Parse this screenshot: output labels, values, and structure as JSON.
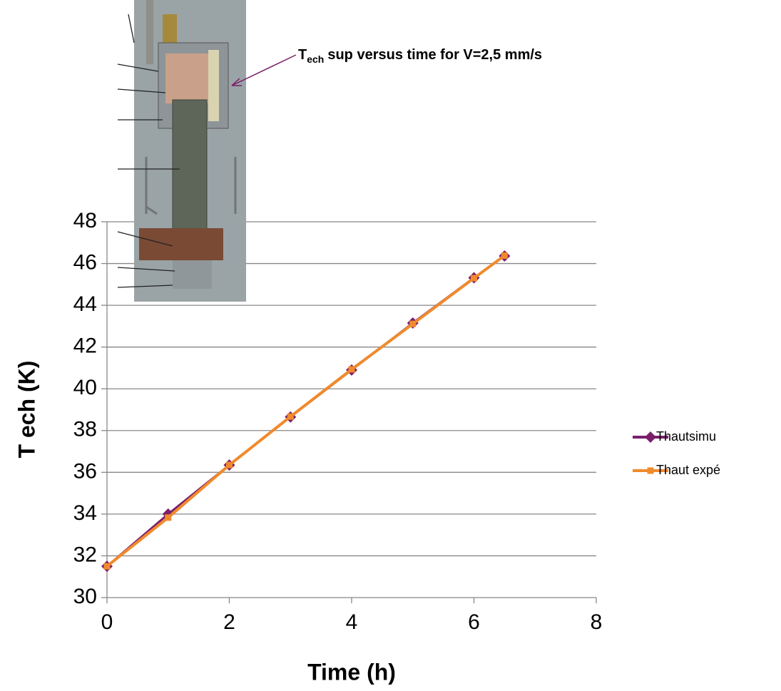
{
  "chart_data": {
    "type": "line",
    "title": {
      "main": "T",
      "sub": "ech",
      "rest": "sup versus time for V=2,5 mm/s"
    },
    "x_label": "Time (h)",
    "y_label": "T ech (K)",
    "x": [
      0,
      1,
      2,
      3,
      4,
      5,
      6,
      6.5
    ],
    "series": [
      {
        "name": "Thautsimu",
        "color": "#7b1f6b",
        "marker": "diamond",
        "values": [
          31.5,
          34.0,
          36.35,
          38.65,
          40.9,
          43.15,
          45.32,
          46.36
        ]
      },
      {
        "name": "Thaut expé",
        "color": "#f08a2c",
        "marker": "square",
        "values": [
          31.5,
          33.83,
          36.35,
          38.67,
          40.93,
          43.11,
          45.3,
          46.38
        ]
      }
    ],
    "xlim": [
      0,
      8
    ],
    "xticks": [
      0,
      2,
      4,
      6,
      8
    ],
    "ylim": [
      30,
      48
    ],
    "yticks": [
      30,
      32,
      34,
      36,
      38,
      40,
      42,
      44,
      46,
      48
    ],
    "grid": true,
    "legend": "right"
  }
}
